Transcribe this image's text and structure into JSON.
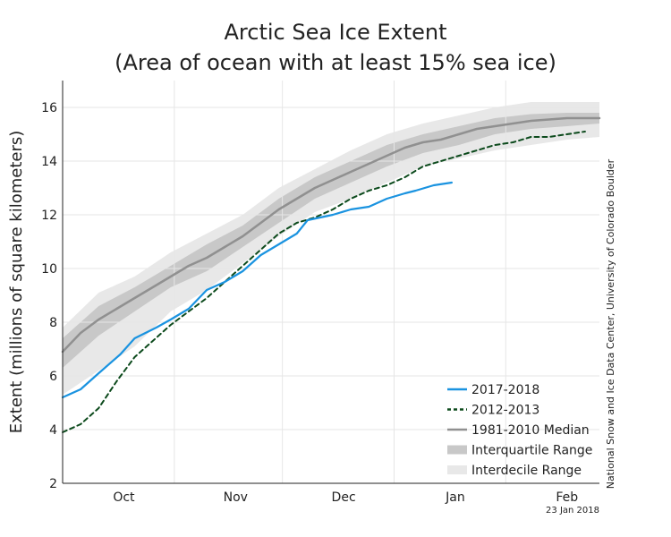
{
  "chart_data": {
    "type": "line",
    "title": "Arctic Sea Ice Extent",
    "subtitle": "(Area of ocean with at least 15% sea ice)",
    "ylabel": "Extent (millions of square kilometers)",
    "xlabel": "",
    "ylim": [
      2,
      17
    ],
    "xlim": [
      0,
      149
    ],
    "yticks": [
      2,
      4,
      6,
      8,
      10,
      12,
      14,
      16
    ],
    "month_ticks": [
      {
        "label": "Oct",
        "x": 17
      },
      {
        "label": "Nov",
        "x": 48
      },
      {
        "label": "Dec",
        "x": 78
      },
      {
        "label": "Jan",
        "x": 109
      },
      {
        "label": "Feb",
        "x": 140
      }
    ],
    "month_boundaries": [
      0,
      31,
      61,
      92,
      123
    ],
    "grid": true,
    "legend_position": "bottom-right",
    "series": [
      {
        "name": "2017-2018",
        "style": "solid",
        "color": "#1a93e0",
        "points": [
          [
            0,
            5.2
          ],
          [
            5,
            5.5
          ],
          [
            10,
            6.1
          ],
          [
            16,
            6.8
          ],
          [
            20,
            7.4
          ],
          [
            26,
            7.8
          ],
          [
            30,
            8.1
          ],
          [
            35,
            8.5
          ],
          [
            40,
            9.2
          ],
          [
            45,
            9.5
          ],
          [
            50,
            9.9
          ],
          [
            55,
            10.5
          ],
          [
            60,
            10.9
          ],
          [
            65,
            11.3
          ],
          [
            68,
            11.8
          ],
          [
            75,
            12.0
          ],
          [
            80,
            12.2
          ],
          [
            85,
            12.3
          ],
          [
            90,
            12.6
          ],
          [
            95,
            12.8
          ],
          [
            98,
            12.9
          ],
          [
            103,
            13.1
          ],
          [
            108,
            13.2
          ]
        ]
      },
      {
        "name": "2012-2013",
        "style": "dashed",
        "color": "#0c4a1c",
        "points": [
          [
            0,
            3.9
          ],
          [
            5,
            4.2
          ],
          [
            10,
            4.8
          ],
          [
            15,
            5.8
          ],
          [
            20,
            6.7
          ],
          [
            25,
            7.3
          ],
          [
            30,
            7.9
          ],
          [
            35,
            8.4
          ],
          [
            40,
            8.9
          ],
          [
            45,
            9.5
          ],
          [
            50,
            10.1
          ],
          [
            55,
            10.7
          ],
          [
            60,
            11.3
          ],
          [
            65,
            11.7
          ],
          [
            70,
            11.9
          ],
          [
            75,
            12.2
          ],
          [
            80,
            12.6
          ],
          [
            85,
            12.9
          ],
          [
            90,
            13.1
          ],
          [
            95,
            13.4
          ],
          [
            100,
            13.8
          ],
          [
            105,
            14.0
          ],
          [
            110,
            14.2
          ],
          [
            115,
            14.4
          ],
          [
            120,
            14.6
          ],
          [
            125,
            14.7
          ],
          [
            130,
            14.9
          ],
          [
            135,
            14.9
          ],
          [
            140,
            15.0
          ],
          [
            145,
            15.1
          ]
        ]
      },
      {
        "name": "1981-2010 Median",
        "style": "solid",
        "color": "#909090",
        "points": [
          [
            0,
            6.9
          ],
          [
            5,
            7.6
          ],
          [
            10,
            8.1
          ],
          [
            15,
            8.5
          ],
          [
            20,
            8.9
          ],
          [
            25,
            9.3
          ],
          [
            30,
            9.7
          ],
          [
            35,
            10.1
          ],
          [
            40,
            10.4
          ],
          [
            45,
            10.8
          ],
          [
            50,
            11.2
          ],
          [
            55,
            11.7
          ],
          [
            60,
            12.2
          ],
          [
            65,
            12.6
          ],
          [
            70,
            13.0
          ],
          [
            75,
            13.3
          ],
          [
            80,
            13.6
          ],
          [
            85,
            13.9
          ],
          [
            90,
            14.2
          ],
          [
            95,
            14.5
          ],
          [
            100,
            14.7
          ],
          [
            105,
            14.8
          ],
          [
            110,
            15.0
          ],
          [
            115,
            15.2
          ],
          [
            120,
            15.3
          ],
          [
            125,
            15.4
          ],
          [
            130,
            15.5
          ],
          [
            135,
            15.55
          ],
          [
            140,
            15.6
          ],
          [
            145,
            15.6
          ],
          [
            149,
            15.6
          ]
        ]
      }
    ],
    "bands": [
      {
        "name": "Interquartile Range",
        "color": "#c8c8c8",
        "upper": [
          [
            0,
            7.4
          ],
          [
            10,
            8.6
          ],
          [
            20,
            9.3
          ],
          [
            30,
            10.1
          ],
          [
            40,
            10.9
          ],
          [
            50,
            11.6
          ],
          [
            60,
            12.6
          ],
          [
            70,
            13.4
          ],
          [
            80,
            14.0
          ],
          [
            90,
            14.6
          ],
          [
            100,
            15.0
          ],
          [
            110,
            15.3
          ],
          [
            120,
            15.6
          ],
          [
            130,
            15.75
          ],
          [
            140,
            15.8
          ],
          [
            149,
            15.8
          ]
        ],
        "lower": [
          [
            0,
            6.3
          ],
          [
            10,
            7.5
          ],
          [
            20,
            8.4
          ],
          [
            30,
            9.3
          ],
          [
            40,
            9.9
          ],
          [
            50,
            10.8
          ],
          [
            60,
            11.7
          ],
          [
            70,
            12.6
          ],
          [
            80,
            13.2
          ],
          [
            90,
            13.8
          ],
          [
            100,
            14.3
          ],
          [
            110,
            14.6
          ],
          [
            120,
            15.0
          ],
          [
            130,
            15.2
          ],
          [
            140,
            15.3
          ],
          [
            149,
            15.4
          ]
        ]
      },
      {
        "name": "Interdecile Range",
        "color": "#e8e8e8",
        "upper": [
          [
            0,
            7.8
          ],
          [
            10,
            9.1
          ],
          [
            20,
            9.7
          ],
          [
            30,
            10.6
          ],
          [
            40,
            11.3
          ],
          [
            50,
            12.0
          ],
          [
            60,
            13.0
          ],
          [
            70,
            13.7
          ],
          [
            80,
            14.4
          ],
          [
            90,
            15.0
          ],
          [
            100,
            15.4
          ],
          [
            110,
            15.7
          ],
          [
            120,
            16.0
          ],
          [
            130,
            16.2
          ],
          [
            140,
            16.2
          ],
          [
            149,
            16.2
          ]
        ],
        "lower": [
          [
            0,
            5.3
          ],
          [
            10,
            6.2
          ],
          [
            20,
            7.1
          ],
          [
            30,
            8.4
          ],
          [
            40,
            9.2
          ],
          [
            50,
            10.2
          ],
          [
            60,
            11.2
          ],
          [
            70,
            12.1
          ],
          [
            80,
            12.6
          ],
          [
            90,
            13.2
          ],
          [
            100,
            13.8
          ],
          [
            110,
            14.1
          ],
          [
            120,
            14.4
          ],
          [
            130,
            14.6
          ],
          [
            140,
            14.8
          ],
          [
            149,
            14.9
          ]
        ]
      }
    ],
    "legend": [
      {
        "label": "2017-2018",
        "kind": "solid",
        "color": "#1a93e0"
      },
      {
        "label": "2012-2013",
        "kind": "dashed",
        "color": "#0c4a1c"
      },
      {
        "label": "1981-2010 Median",
        "kind": "solid",
        "color": "#909090"
      },
      {
        "label": "Interquartile Range",
        "kind": "band",
        "color": "#c8c8c8"
      },
      {
        "label": "Interdecile Range",
        "kind": "band",
        "color": "#e8e8e8"
      }
    ],
    "credit": "National Snow and Ice Data Center, University of Colorado Boulder",
    "date_stamp": "23 Jan 2018"
  }
}
